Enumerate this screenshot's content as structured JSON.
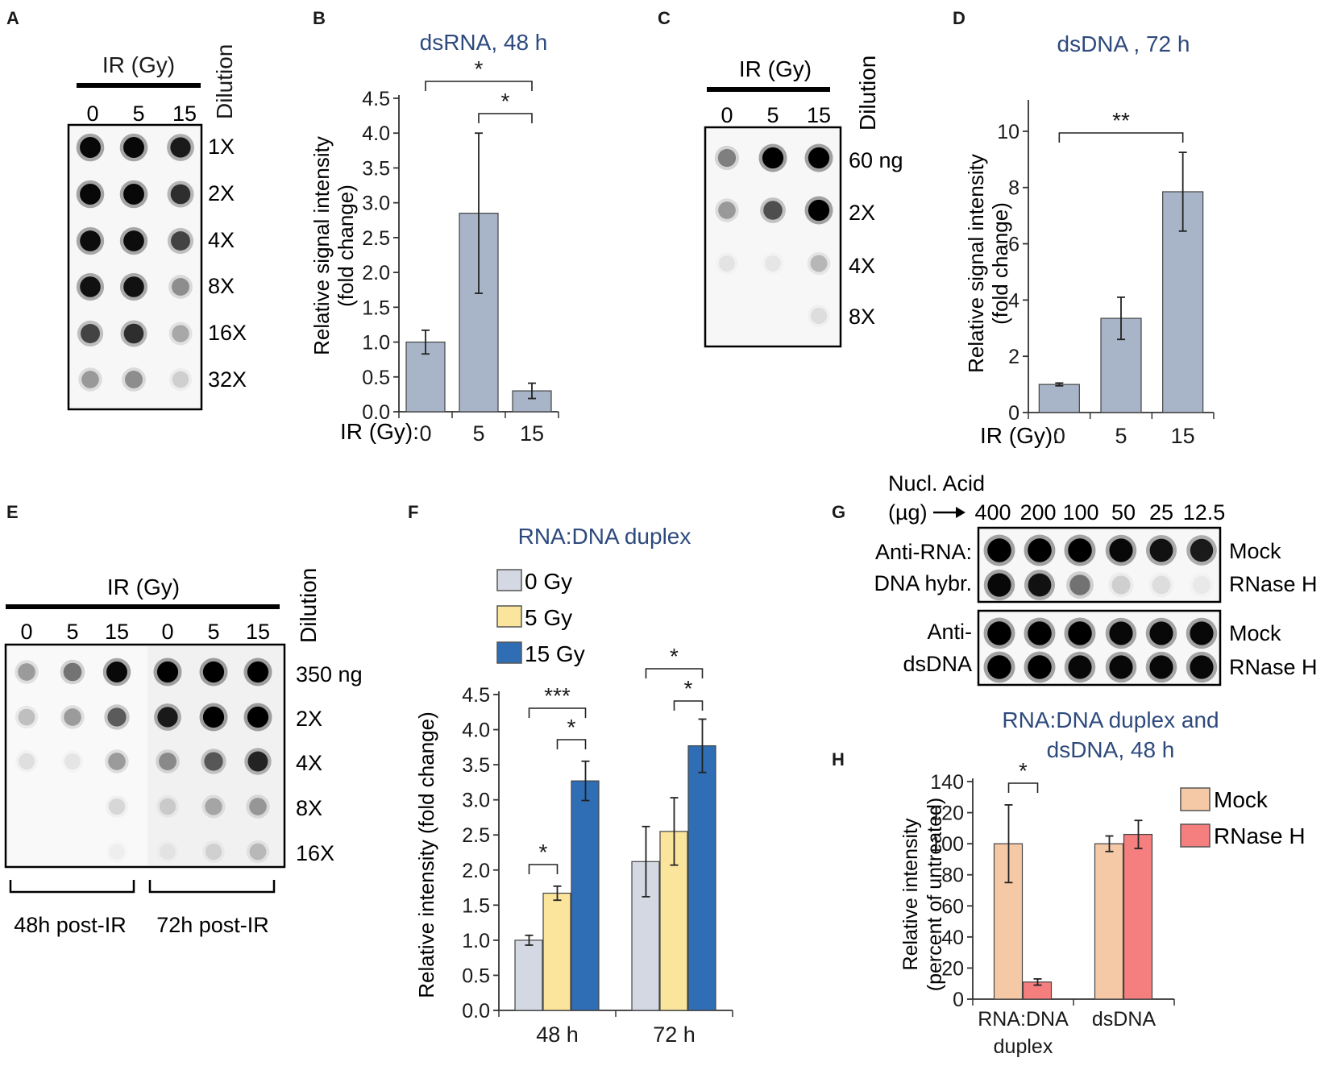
{
  "panels": {
    "A": {
      "letter": "A",
      "ir_label": "IR (Gy)",
      "dilution_label": "Dilution",
      "doses": [
        "0",
        "5",
        "15"
      ],
      "rows": [
        "1X",
        "2X",
        "4X",
        "8X",
        "16X",
        "32X"
      ],
      "intensity": [
        [
          0.95,
          0.95,
          0.85
        ],
        [
          0.95,
          0.95,
          0.75
        ],
        [
          0.92,
          0.92,
          0.65
        ],
        [
          0.9,
          0.9,
          0.35
        ],
        [
          0.65,
          0.75,
          0.25
        ],
        [
          0.3,
          0.35,
          0.12
        ]
      ]
    },
    "B": {
      "letter": "B",
      "title": "dsRNA, 48 h",
      "ylabel_line1": "Relative signal intensity",
      "ylabel_line2": "(fold change)",
      "x_prefix": "IR (Gy):"
    },
    "C": {
      "letter": "C",
      "ir_label": "IR (Gy)",
      "dilution_label": "Dilution",
      "doses": [
        "0",
        "5",
        "15"
      ],
      "rows": [
        "60 ng",
        "2X",
        "4X",
        "8X"
      ],
      "intensity": [
        [
          0.4,
          1.0,
          1.0
        ],
        [
          0.3,
          0.6,
          1.0
        ],
        [
          0.06,
          0.05,
          0.2
        ],
        [
          0.0,
          0.0,
          0.08
        ]
      ]
    },
    "D": {
      "letter": "D",
      "title": "dsDNA , 72 h",
      "ylabel_line1": "Relative signal intensity",
      "ylabel_line2": "(fold change)",
      "x_prefix": "IR (Gy):"
    },
    "E": {
      "letter": "E",
      "ir_label": "IR (Gy)",
      "dilution_label": "Dilution",
      "doses": [
        "0",
        "5",
        "15",
        "0",
        "5",
        "15"
      ],
      "rows": [
        "350 ng",
        "2X",
        "4X",
        "8X",
        "16X"
      ],
      "group_labels": [
        "48h post-IR",
        "72h post-IR"
      ],
      "intensity": [
        [
          0.3,
          0.45,
          0.95,
          1.0,
          1.0,
          1.0
        ],
        [
          0.18,
          0.3,
          0.55,
          0.85,
          1.0,
          1.0
        ],
        [
          0.08,
          0.06,
          0.3,
          0.35,
          0.55,
          0.8
        ],
        [
          0.0,
          0.0,
          0.1,
          0.12,
          0.25,
          0.3
        ],
        [
          0.0,
          0.0,
          0.03,
          0.04,
          0.1,
          0.18
        ]
      ]
    },
    "F": {
      "letter": "F",
      "title": "RNA:DNA duplex",
      "ylabel": "Relative intensity (fold change)",
      "legend": [
        "0 Gy",
        "5 Gy",
        "15 Gy"
      ]
    },
    "G": {
      "letter": "G",
      "nucl_line1": "Nucl. Acid",
      "nucl_line2": "(µg)",
      "amounts": [
        "400",
        "200",
        "100",
        "50",
        "25",
        "12.5"
      ],
      "box1_label_line1": "Anti-RNA:",
      "box1_label_line2": "DNA hybr.",
      "box2_label_line1": "Anti-",
      "box2_label_line2": "dsDNA",
      "row_labels": [
        "Mock",
        "RNase H"
      ],
      "box1_intensity": [
        [
          1.0,
          1.0,
          1.0,
          0.95,
          0.9,
          0.85
        ],
        [
          0.95,
          0.9,
          0.45,
          0.12,
          0.08,
          0.04
        ]
      ],
      "box2_intensity": [
        [
          1.0,
          1.0,
          1.0,
          0.95,
          0.95,
          0.95
        ],
        [
          1.0,
          1.0,
          0.95,
          0.95,
          0.95,
          0.95
        ]
      ]
    },
    "H": {
      "letter": "H",
      "title_line1": "RNA:DNA duplex and",
      "title_line2": "dsDNA, 48 h",
      "ylabel_line1": "Relative intensity",
      "ylabel_line2": "(percent of untreated)",
      "legend": [
        "Mock",
        "RNase H"
      ]
    }
  },
  "colors": {
    "text": "#1a1a1a",
    "title": "#2e4a7d",
    "bar_grey": "#a8b4c8",
    "bar_0gy": "#d3d8e2",
    "bar_5gy": "#fbe59c",
    "bar_15gy": "#2f6db5",
    "bar_mock": "#f6c9a6",
    "bar_rnase": "#f57e7f",
    "blot_bg": "#f7f7f7"
  },
  "chart_data": [
    {
      "panel": "B",
      "type": "bar",
      "title": "dsRNA, 48 h",
      "xlabel": "IR (Gy):",
      "ylabel": "Relative signal intensity (fold change)",
      "categories": [
        "0",
        "5",
        "15"
      ],
      "values": [
        1.0,
        2.85,
        0.3
      ],
      "errors": [
        0.17,
        1.15,
        0.11
      ],
      "ylim": [
        0,
        4.5
      ],
      "yticks": [
        "0.0",
        "0.5",
        "1.0",
        "1.5",
        "2.0",
        "2.5",
        "3.0",
        "3.5",
        "4.0",
        "4.5"
      ],
      "annotations": [
        {
          "from": "0",
          "to": "15",
          "label": "*"
        },
        {
          "from": "5",
          "to": "15",
          "label": "*"
        }
      ]
    },
    {
      "panel": "D",
      "type": "bar",
      "title": "dsDNA , 72 h",
      "xlabel": "IR (Gy):",
      "ylabel": "Relative signal intensity (fold change)",
      "categories": [
        "0",
        "5",
        "15"
      ],
      "values": [
        1.0,
        3.35,
        7.85
      ],
      "errors": [
        0.05,
        0.75,
        1.4
      ],
      "ylim": [
        0,
        11
      ],
      "yticks": [
        "0",
        "2",
        "4",
        "6",
        "8",
        "10"
      ],
      "annotations": [
        {
          "from": "0",
          "to": "15",
          "label": "**"
        }
      ]
    },
    {
      "panel": "F",
      "type": "bar",
      "title": "RNA:DNA duplex",
      "xlabel": "",
      "ylabel": "Relative intensity (fold change)",
      "categories": [
        "48 h",
        "72 h"
      ],
      "series": [
        {
          "name": "0 Gy",
          "values": [
            1.0,
            2.12
          ],
          "errors": [
            0.07,
            0.5
          ]
        },
        {
          "name": "5 Gy",
          "values": [
            1.67,
            2.55
          ],
          "errors": [
            0.1,
            0.48
          ]
        },
        {
          "name": "15 Gy",
          "values": [
            3.27,
            3.77
          ],
          "errors": [
            0.28,
            0.38
          ]
        }
      ],
      "ylim": [
        0,
        4.5
      ],
      "yticks": [
        "0.0",
        "0.5",
        "1.0",
        "1.5",
        "2.0",
        "2.5",
        "3.0",
        "3.5",
        "4.0",
        "4.5"
      ],
      "annotations": [
        {
          "category": "48 h",
          "from": "0 Gy",
          "to": "5 Gy",
          "label": "*"
        },
        {
          "category": "48 h",
          "from": "0 Gy",
          "to": "15 Gy",
          "label": "***"
        },
        {
          "category": "48 h",
          "from": "5 Gy",
          "to": "15 Gy",
          "label": "*"
        },
        {
          "category": "72 h",
          "from": "0 Gy",
          "to": "15 Gy",
          "label": "*"
        },
        {
          "category": "72 h",
          "from": "5 Gy",
          "to": "15 Gy",
          "label": "*"
        }
      ]
    },
    {
      "panel": "H",
      "type": "bar",
      "title": "RNA:DNA duplex and dsDNA, 48 h",
      "xlabel": "",
      "ylabel": "Relative intensity (percent of untreated)",
      "categories": [
        "RNA:DNA duplex",
        "dsDNA"
      ],
      "category_lines": [
        [
          "RNA:DNA",
          "duplex"
        ],
        [
          "dsDNA"
        ]
      ],
      "series": [
        {
          "name": "Mock",
          "values": [
            100,
            100
          ],
          "errors": [
            25,
            5
          ]
        },
        {
          "name": "RNase H",
          "values": [
            11,
            106
          ],
          "errors": [
            2,
            9
          ]
        }
      ],
      "ylim": [
        0,
        140
      ],
      "yticks": [
        "0",
        "20",
        "40",
        "60",
        "80",
        "100",
        "120",
        "140"
      ],
      "annotations": [
        {
          "category": "RNA:DNA duplex",
          "from": "Mock",
          "to": "RNase H",
          "label": "*"
        }
      ]
    }
  ]
}
